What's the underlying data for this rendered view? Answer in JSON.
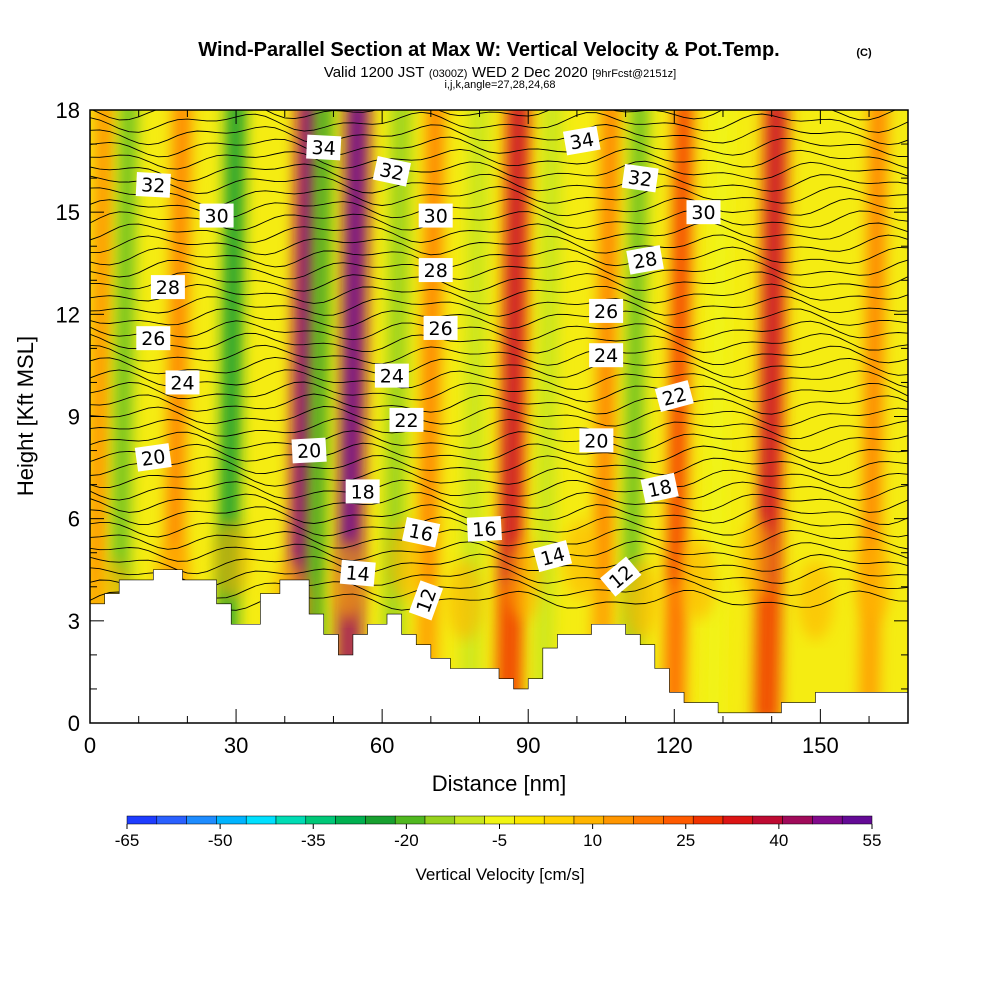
{
  "chart_data": {
    "type": "heatmap",
    "title": "Wind-Parallel Section at Max W: Vertical Velocity & Pot.Temp.",
    "title_mark": "(C)",
    "subtitle_parts": {
      "valid": "Valid 1200 JST",
      "utc": "(0300Z)",
      "date": "WED 2 Dec 2020",
      "fcst": "[9hrFcst@2151z]"
    },
    "info_line": "i,j,k,angle=27,28,24,68",
    "xlabel": "Distance [nm]",
    "ylabel": "Height [Kft MSL]",
    "xlim": [
      0,
      168
    ],
    "ylim": [
      0,
      18
    ],
    "x_ticks": [
      "0",
      "30",
      "60",
      "90",
      "120",
      "150"
    ],
    "y_ticks": [
      "0",
      "3",
      "6",
      "9",
      "12",
      "15",
      "18"
    ],
    "colorbar": {
      "title": "Vertical Velocity [cm/s]",
      "ticks": [
        "-65",
        "-50",
        "-35",
        "-20",
        "-5",
        "10",
        "25",
        "40",
        "55"
      ],
      "colors": [
        "#1e3cff",
        "#2a60ff",
        "#1e8cff",
        "#00b4ff",
        "#00e0ff",
        "#00dcb4",
        "#00c878",
        "#00b050",
        "#18a030",
        "#50b820",
        "#96d21e",
        "#c8e61e",
        "#f0f514",
        "#fae600",
        "#ffd200",
        "#ffb400",
        "#ff9600",
        "#ff7800",
        "#ff5a00",
        "#f03200",
        "#dc1414",
        "#be0a32",
        "#a00a5a",
        "#820a8c",
        "#640a96"
      ]
    },
    "updraft_bands": [
      {
        "x": 3,
        "intensity": 12
      },
      {
        "x": 19,
        "intensity": 14
      },
      {
        "x": 45,
        "intensity": 40
      },
      {
        "x": 55,
        "intensity": 45
      },
      {
        "x": 71,
        "intensity": 15
      },
      {
        "x": 88,
        "intensity": 30
      },
      {
        "x": 107,
        "intensity": 16
      },
      {
        "x": 122,
        "intensity": 24
      },
      {
        "x": 141,
        "intensity": 30
      },
      {
        "x": 162,
        "intensity": 15
      }
    ],
    "downdraft_bands": [
      {
        "x": 8,
        "intensity": -15
      },
      {
        "x": 30,
        "intensity": -22
      },
      {
        "x": 48,
        "intensity": -18
      },
      {
        "x": 64,
        "intensity": -14
      },
      {
        "x": 80,
        "intensity": -8
      },
      {
        "x": 95,
        "intensity": -9
      },
      {
        "x": 113,
        "intensity": -16
      },
      {
        "x": 130,
        "intensity": -6
      }
    ],
    "terrain": [
      [
        0,
        3.5
      ],
      [
        3,
        3.5
      ],
      [
        3,
        3.8
      ],
      [
        6,
        3.8
      ],
      [
        6,
        4.2
      ],
      [
        13,
        4.2
      ],
      [
        13,
        4.5
      ],
      [
        19,
        4.5
      ],
      [
        19,
        4.2
      ],
      [
        26,
        4.2
      ],
      [
        26,
        3.5
      ],
      [
        29,
        3.5
      ],
      [
        29,
        2.9
      ],
      [
        35,
        2.9
      ],
      [
        35,
        3.8
      ],
      [
        39,
        3.8
      ],
      [
        39,
        4.2
      ],
      [
        45,
        4.2
      ],
      [
        45,
        3.2
      ],
      [
        48,
        3.2
      ],
      [
        48,
        2.6
      ],
      [
        51,
        2.6
      ],
      [
        51,
        2.0
      ],
      [
        54,
        2.0
      ],
      [
        54,
        2.6
      ],
      [
        57,
        2.6
      ],
      [
        57,
        2.9
      ],
      [
        61,
        2.9
      ],
      [
        61,
        3.2
      ],
      [
        64,
        3.2
      ],
      [
        64,
        2.6
      ],
      [
        67,
        2.6
      ],
      [
        67,
        2.3
      ],
      [
        70,
        2.3
      ],
      [
        70,
        1.9
      ],
      [
        74,
        1.9
      ],
      [
        74,
        1.6
      ],
      [
        84,
        1.6
      ],
      [
        84,
        1.3
      ],
      [
        87,
        1.3
      ],
      [
        87,
        1.0
      ],
      [
        90,
        1.0
      ],
      [
        90,
        1.3
      ],
      [
        93,
        1.3
      ],
      [
        93,
        2.2
      ],
      [
        96,
        2.2
      ],
      [
        96,
        2.6
      ],
      [
        103,
        2.6
      ],
      [
        103,
        2.9
      ],
      [
        110,
        2.9
      ],
      [
        110,
        2.6
      ],
      [
        113,
        2.6
      ],
      [
        113,
        2.3
      ],
      [
        116,
        2.3
      ],
      [
        116,
        1.6
      ],
      [
        119,
        1.6
      ],
      [
        119,
        0.9
      ],
      [
        122,
        0.9
      ],
      [
        122,
        0.6
      ],
      [
        129,
        0.6
      ],
      [
        129,
        0.3
      ],
      [
        142,
        0.3
      ],
      [
        142,
        0.6
      ],
      [
        149,
        0.6
      ],
      [
        149,
        0.9
      ],
      [
        168,
        0.9
      ]
    ],
    "theta_contour_labels": [
      {
        "text": "32",
        "x": 13,
        "y": 15.8,
        "angle": 3
      },
      {
        "text": "30",
        "x": 26,
        "y": 14.9,
        "angle": 0
      },
      {
        "text": "28",
        "x": 16,
        "y": 12.8,
        "angle": 0
      },
      {
        "text": "26",
        "x": 13,
        "y": 11.3,
        "angle": 0
      },
      {
        "text": "24",
        "x": 19,
        "y": 10.0,
        "angle": 0
      },
      {
        "text": "20",
        "x": 13,
        "y": 7.8,
        "angle": -8
      },
      {
        "text": "34",
        "x": 48,
        "y": 16.9,
        "angle": 3
      },
      {
        "text": "32",
        "x": 62,
        "y": 16.2,
        "angle": 12
      },
      {
        "text": "20",
        "x": 45,
        "y": 8.0,
        "angle": -3
      },
      {
        "text": "24",
        "x": 62,
        "y": 10.2,
        "angle": 0
      },
      {
        "text": "22",
        "x": 65,
        "y": 8.9,
        "angle": 0
      },
      {
        "text": "18",
        "x": 56,
        "y": 6.8,
        "angle": 0
      },
      {
        "text": "14",
        "x": 55,
        "y": 4.4,
        "angle": 5
      },
      {
        "text": "30",
        "x": 71,
        "y": 14.9,
        "angle": 0
      },
      {
        "text": "28",
        "x": 71,
        "y": 13.3,
        "angle": 0
      },
      {
        "text": "26",
        "x": 72,
        "y": 11.6,
        "angle": 0
      },
      {
        "text": "16",
        "x": 68,
        "y": 5.6,
        "angle": 12
      },
      {
        "text": "16",
        "x": 81,
        "y": 5.7,
        "angle": -3
      },
      {
        "text": "12",
        "x": 69,
        "y": 3.6,
        "angle": -70
      },
      {
        "text": "34",
        "x": 101,
        "y": 17.1,
        "angle": -10
      },
      {
        "text": "32",
        "x": 113,
        "y": 16.0,
        "angle": 8
      },
      {
        "text": "30",
        "x": 126,
        "y": 15.0,
        "angle": 0
      },
      {
        "text": "28",
        "x": 114,
        "y": 13.6,
        "angle": -10
      },
      {
        "text": "26",
        "x": 106,
        "y": 12.1,
        "angle": 0
      },
      {
        "text": "24",
        "x": 106,
        "y": 10.8,
        "angle": 0
      },
      {
        "text": "22",
        "x": 120,
        "y": 9.6,
        "angle": -15
      },
      {
        "text": "20",
        "x": 104,
        "y": 8.3,
        "angle": 0
      },
      {
        "text": "18",
        "x": 117,
        "y": 6.9,
        "angle": -12
      },
      {
        "text": "14",
        "x": 95,
        "y": 4.9,
        "angle": -15
      },
      {
        "text": "12",
        "x": 109,
        "y": 4.3,
        "angle": -40
      }
    ]
  }
}
